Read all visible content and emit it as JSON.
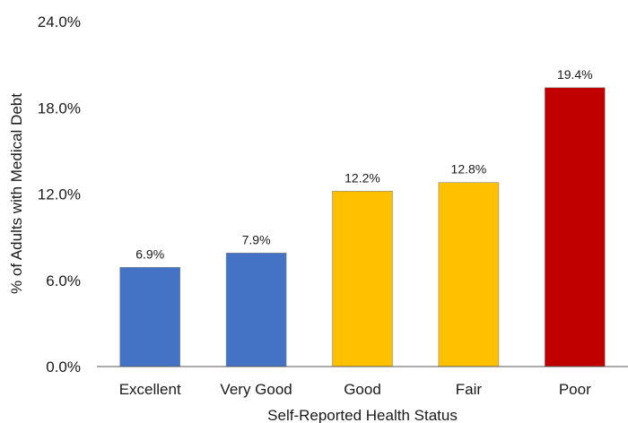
{
  "chart_data": {
    "type": "bar",
    "title": "",
    "xlabel": "Self-Reported Health Status",
    "ylabel": "% of Adults with Medical Debt",
    "categories": [
      "Excellent",
      "Very Good",
      "Good",
      "Fair",
      "Poor"
    ],
    "values": [
      6.9,
      7.9,
      12.2,
      12.8,
      19.4
    ],
    "data_labels": [
      "6.9%",
      "7.9%",
      "12.2%",
      "12.8%",
      "19.4%"
    ],
    "bar_colors": [
      "#4472c4",
      "#4472c4",
      "#ffc000",
      "#ffc000",
      "#c00000"
    ],
    "ylim": [
      0,
      24
    ],
    "yticks": [
      0,
      6,
      12,
      18,
      24
    ],
    "ytick_labels": [
      "0.0%",
      "6.0%",
      "12.0%",
      "18.0%",
      "24.0%"
    ],
    "grid": false,
    "legend": "none"
  }
}
